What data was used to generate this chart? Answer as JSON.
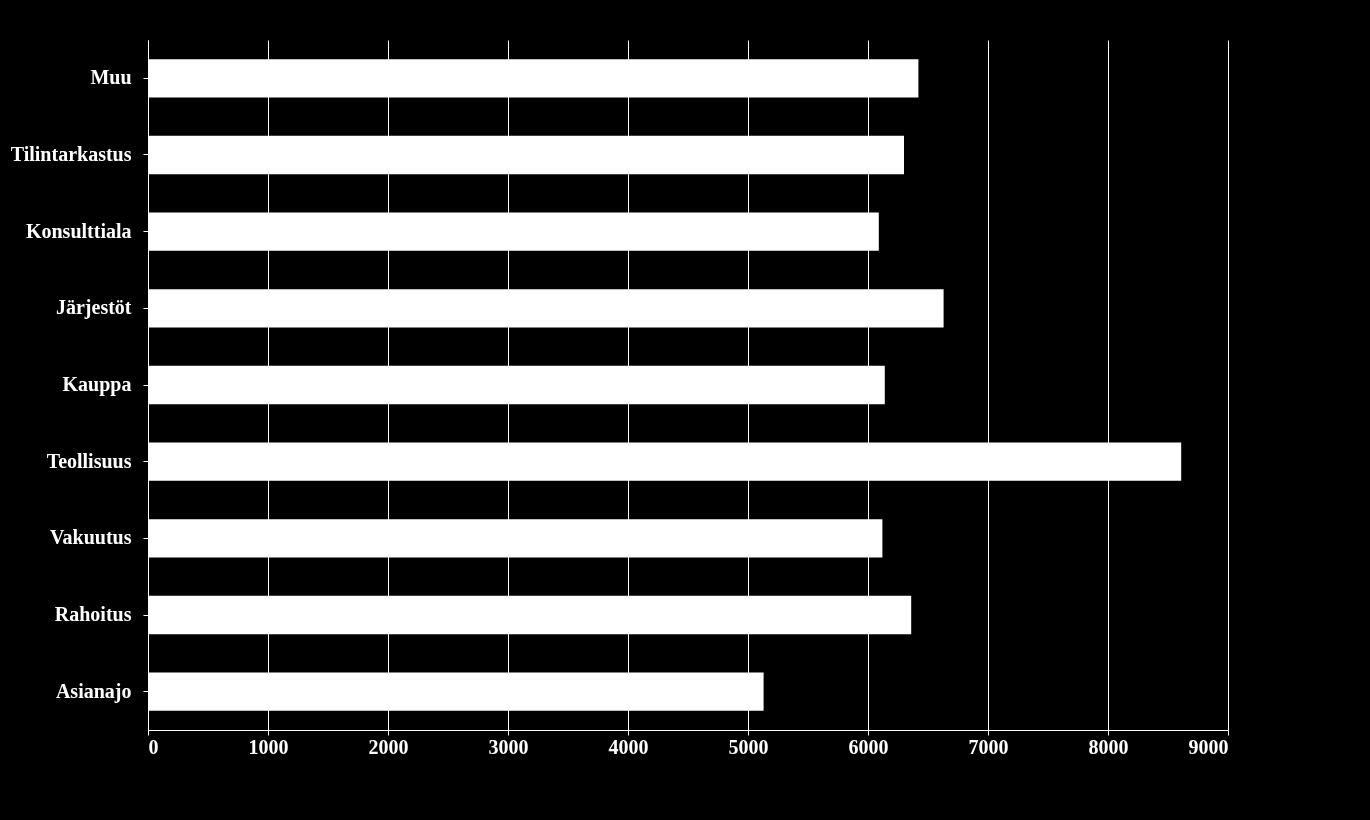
{
  "chart_data": {
    "type": "bar",
    "orientation": "horizontal",
    "categories": [
      "Muu",
      "Tilintarkastus",
      "Konsulttiala",
      "Järjestöt",
      "Kauppa",
      "Teollisuus",
      "Vakuutus",
      "Rahoitus",
      "Asianajo"
    ],
    "values": [
      6420,
      6300,
      6090,
      6630,
      6140,
      8610,
      6120,
      6360,
      5130
    ],
    "color": "#ffffff",
    "xlim": [
      0,
      9000
    ],
    "xticks": [
      0,
      1000,
      2000,
      3000,
      4000,
      5000,
      6000,
      7000,
      8000,
      9000
    ],
    "grid": "x"
  }
}
